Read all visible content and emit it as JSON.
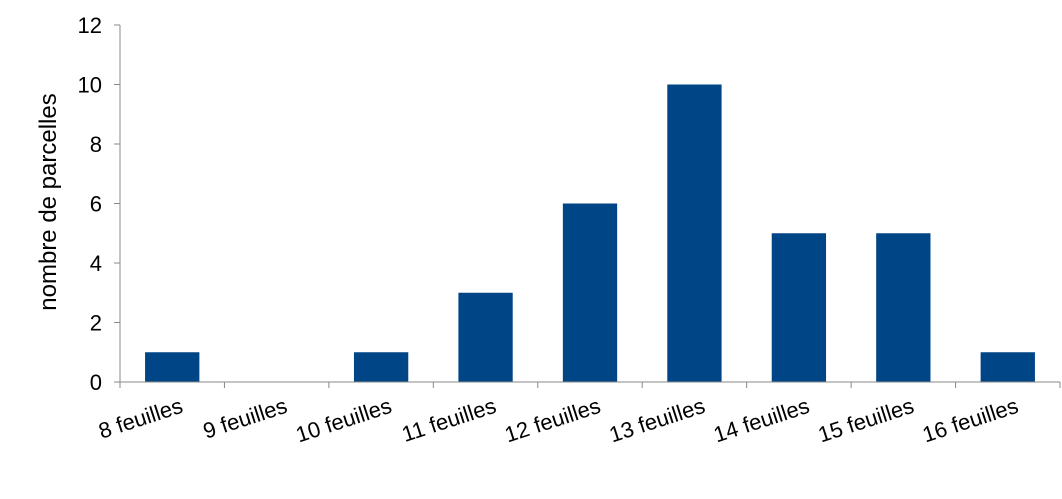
{
  "chart_data": {
    "type": "bar",
    "categories": [
      "8 feuilles",
      "9 feuilles",
      "10 feuilles",
      "11 feuilles",
      "12 feuilles",
      "13 feuilles",
      "14 feuilles",
      "15 feuilles",
      "16 feuilles"
    ],
    "values": [
      1,
      0,
      1,
      3,
      6,
      10,
      5,
      5,
      1
    ],
    "xlabel": "",
    "ylabel": "nombre de parcelles",
    "ylim": [
      0,
      12
    ],
    "yticks": [
      "0",
      "2",
      "4",
      "6",
      "8",
      "10",
      "12"
    ],
    "grid": false,
    "legend": "none",
    "bar_color": "#004586",
    "axis_color": "#888888"
  }
}
